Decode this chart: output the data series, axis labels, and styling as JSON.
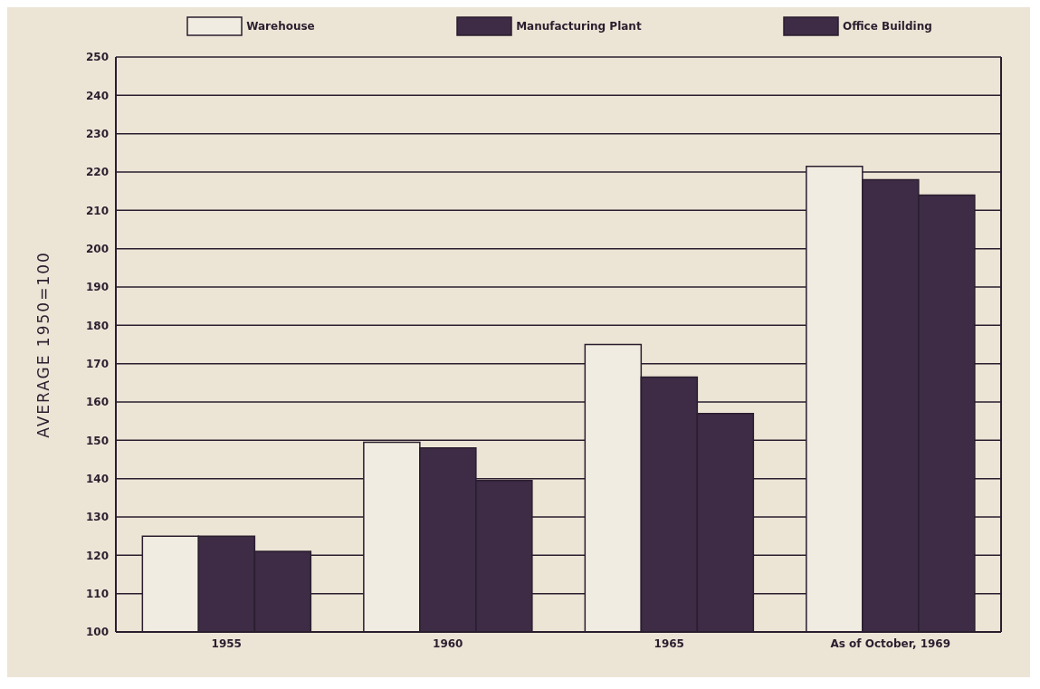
{
  "chart_data": {
    "type": "bar",
    "ylabel": "AVERAGE 1950=100",
    "categories": [
      "1955",
      "1960",
      "1965",
      "As of October, 1969"
    ],
    "series": [
      {
        "name": "Warehouse",
        "color": "#f1ece1",
        "values": [
          125,
          149.5,
          175,
          221.5
        ]
      },
      {
        "name": "Manufacturing Plant",
        "color": "#3e2b46",
        "values": [
          125,
          148,
          166.5,
          218
        ]
      },
      {
        "name": "Office Building",
        "color": "#3e2b46",
        "values": [
          121,
          139.5,
          157,
          214
        ]
      }
    ],
    "ylim": [
      100,
      250
    ],
    "yticks": [
      100,
      110,
      120,
      130,
      140,
      150,
      160,
      170,
      180,
      190,
      200,
      210,
      220,
      230,
      240,
      250
    ],
    "grid": "y",
    "legend": "top"
  }
}
